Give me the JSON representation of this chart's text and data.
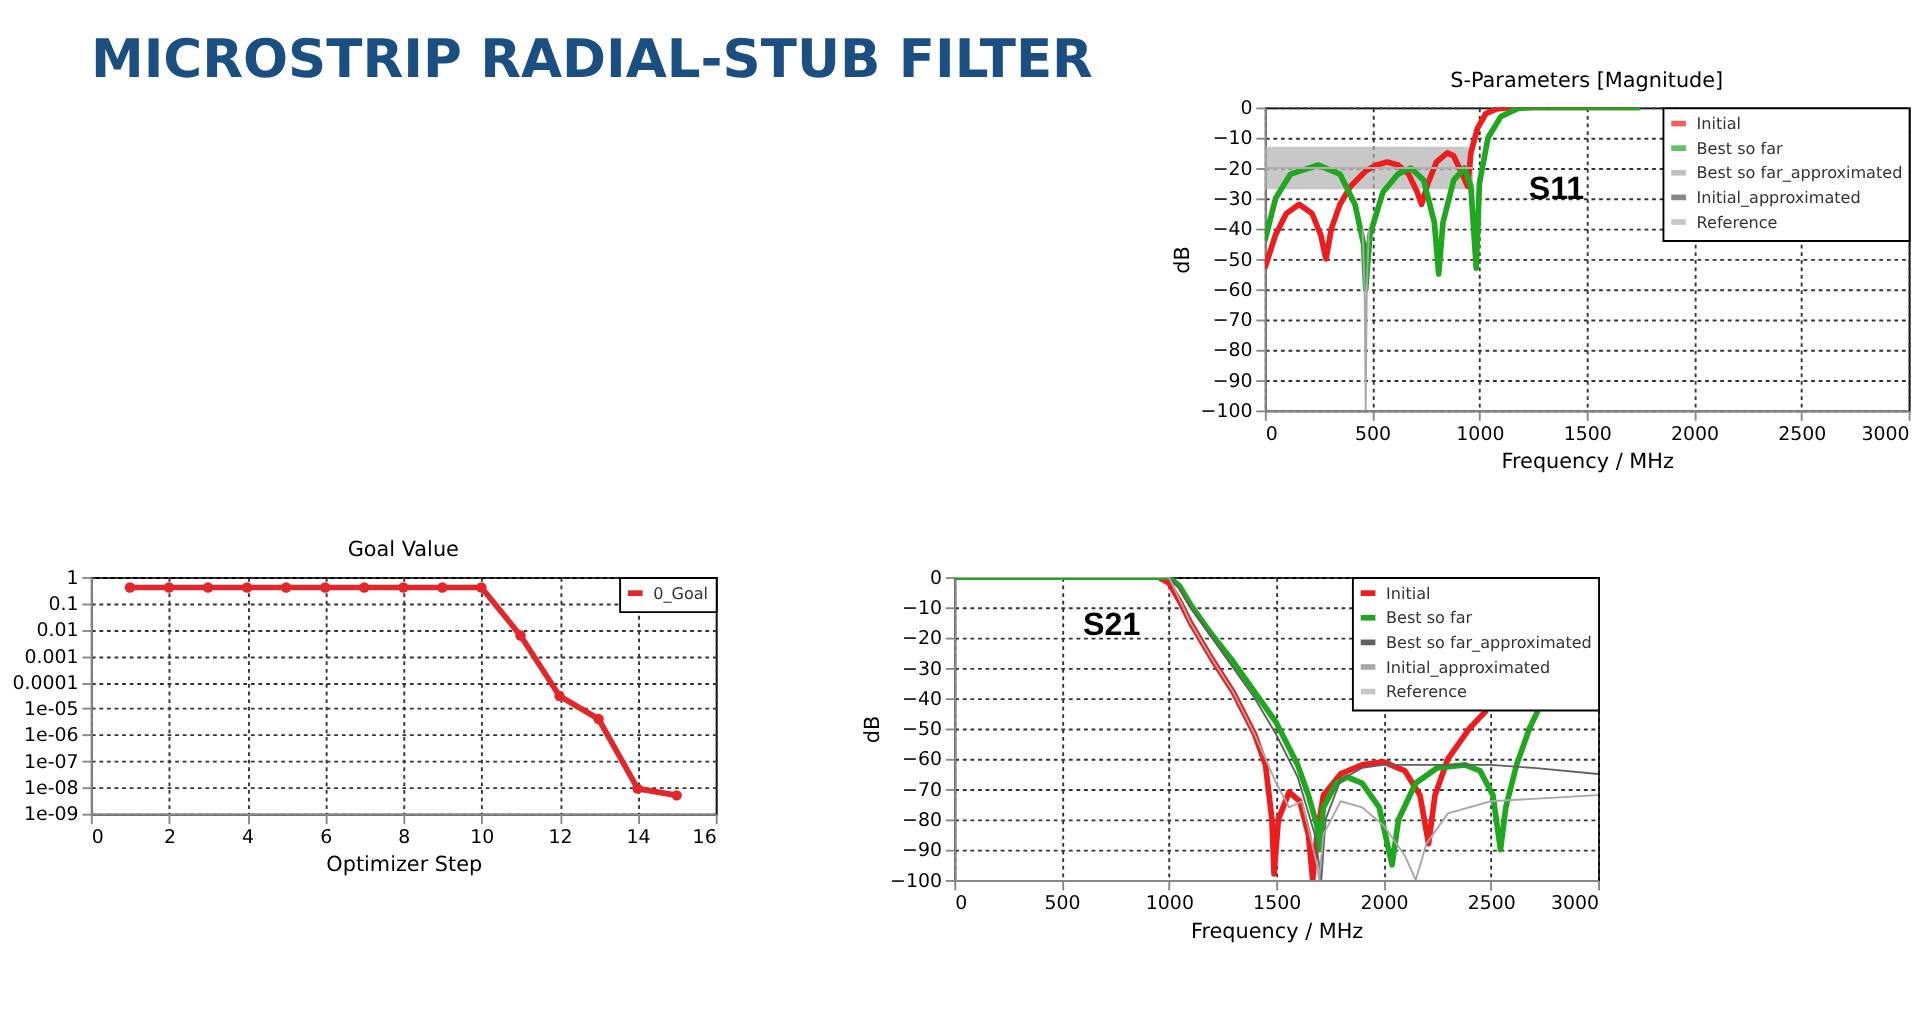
{
  "chart_data": [
    {
      "type": "other",
      "title": "MICROSTRIP RADIAL-STUB FILTER"
    },
    {
      "type": "line",
      "title": "S-Parameters [Magnitude]",
      "xlabel": "Frequency / MHz",
      "ylabel": "dB",
      "xlim": [
        0,
        3000
      ],
      "xticks": [
        0,
        500,
        1000,
        1500,
        2000,
        2500,
        3000
      ],
      "ylim": [
        -100,
        0
      ],
      "yticks": [
        -100,
        -90,
        -80,
        -70,
        -60,
        -50,
        -40,
        -30,
        -20,
        -10,
        0
      ],
      "grid": true,
      "legend": "top right",
      "annotations": [
        "S11"
      ],
      "series": [
        {
          "name": "Initial",
          "color": "#ee1c1c",
          "x": [
            0,
            50,
            100,
            160,
            220,
            260,
            285,
            310,
            350,
            400,
            470,
            520,
            570,
            620,
            670,
            710,
            730,
            760,
            800,
            850,
            880,
            920,
            945,
            960,
            990,
            1030,
            1080,
            1150,
            1750
          ],
          "values": [
            -53,
            -42,
            -35,
            -32,
            -35,
            -42,
            -50,
            -40,
            -32,
            -26,
            -21,
            -19,
            -18,
            -19,
            -22,
            -28,
            -32,
            -25,
            -18,
            -15,
            -16,
            -22,
            -26,
            -15,
            -7,
            -2,
            -0.5,
            0,
            0
          ]
        },
        {
          "name": "Best so far",
          "color": "#1fa71f",
          "x": [
            0,
            50,
            120,
            250,
            350,
            420,
            460,
            470,
            490,
            550,
            620,
            680,
            740,
            790,
            810,
            830,
            880,
            930,
            960,
            985,
            1000,
            1040,
            1100,
            1180,
            1250,
            1750
          ],
          "values": [
            -44,
            -30,
            -22,
            -19,
            -22,
            -32,
            -45,
            -60,
            -42,
            -28,
            -22,
            -20,
            -24,
            -38,
            -55,
            -38,
            -24,
            -20,
            -26,
            -53,
            -25,
            -10,
            -3,
            -0.3,
            0,
            0
          ]
        },
        {
          "name": "Best so far_approximated",
          "color": "#a8a8a8",
          "x": [
            455,
            465,
            470,
            475,
            485
          ],
          "values": [
            -40,
            -60,
            -100,
            -60,
            -40
          ]
        },
        {
          "name": "Initial_approximated",
          "color": "#555555"
        },
        {
          "name": "Reference",
          "color": "#b0b0b0",
          "x": [
            0,
            970
          ],
          "values": [
            -20,
            -20
          ],
          "lower": [
            -27,
            -27
          ],
          "upper": [
            -13,
            -13
          ]
        }
      ]
    },
    {
      "type": "line",
      "title": "Goal Value",
      "xlabel": "Optimizer Step",
      "xlim": [
        0,
        16
      ],
      "xticks": [
        0,
        2,
        4,
        6,
        8,
        10,
        12,
        14,
        16
      ],
      "ylim": [
        1e-09,
        1
      ],
      "log": true,
      "yticks": [
        {
          "value": 1e-09,
          "label": "1e-09"
        },
        {
          "value": 1e-08,
          "label": "1e-08"
        },
        {
          "value": 1e-07,
          "label": "1e-07"
        },
        {
          "value": 1e-06,
          "label": "1e-06"
        },
        {
          "value": 1e-05,
          "label": "1e-05"
        },
        0.0001,
        0.001,
        0.01,
        0.1,
        1
      ],
      "grid": true,
      "legend": "top right",
      "marker": "circle",
      "series": [
        {
          "name": "0_Goal",
          "color": "#e3262a",
          "x": [
            1,
            2,
            3,
            4,
            5,
            6,
            7,
            8,
            9,
            10,
            11,
            12,
            13,
            14,
            15
          ],
          "values": [
            0.4,
            0.4,
            0.4,
            0.4,
            0.4,
            0.4,
            0.4,
            0.4,
            0.4,
            0.4,
            0.006,
            3e-05,
            4e-06,
            9e-09,
            5e-09
          ]
        }
      ]
    },
    {
      "type": "line",
      "xlabel": "Frequency / MHz",
      "ylabel": "dB",
      "xlim": [
        0,
        3000
      ],
      "xticks": [
        0,
        500,
        1000,
        1500,
        2000,
        2500,
        3000
      ],
      "ylim": [
        -100,
        0
      ],
      "yticks": [
        -100,
        -90,
        -80,
        -70,
        -60,
        -50,
        -40,
        -30,
        -20,
        -10,
        0
      ],
      "grid": true,
      "legend": "top right",
      "annotations": [
        "S21"
      ],
      "series": [
        {
          "name": "Initial",
          "color": "#ee1c1c",
          "x": [
            0,
            950,
            1000,
            1050,
            1100,
            1200,
            1300,
            1400,
            1450,
            1480,
            1490,
            1510,
            1560,
            1610,
            1650,
            1670,
            1690,
            1720,
            1800,
            1900,
            2000,
            2100,
            2170,
            2210,
            2240,
            2300,
            2400,
            2480
          ],
          "values": [
            0,
            0,
            -2,
            -8,
            -15,
            -27,
            -38,
            -52,
            -62,
            -80,
            -98,
            -80,
            -71,
            -74,
            -85,
            -100,
            -85,
            -72,
            -65,
            -62,
            -61,
            -64,
            -72,
            -88,
            -72,
            -60,
            -50,
            -44
          ]
        },
        {
          "name": "Best so far",
          "color": "#1fa71f",
          "x": [
            0,
            1000,
            1050,
            1100,
            1200,
            1300,
            1400,
            1500,
            1600,
            1650,
            1690,
            1700,
            1720,
            1780,
            1830,
            1900,
            1980,
            2040,
            2070,
            2150,
            2250,
            2380,
            2450,
            2510,
            2545,
            2570,
            2620,
            2680,
            2720
          ],
          "values": [
            0,
            0,
            -3,
            -9,
            -19,
            -28,
            -38,
            -48,
            -62,
            -72,
            -82,
            -90,
            -76,
            -68,
            -66,
            -68,
            -76,
            -95,
            -80,
            -68,
            -63,
            -62,
            -64,
            -72,
            -90,
            -76,
            -62,
            -50,
            -44
          ]
        },
        {
          "name": "Best so far_approximated",
          "color": "#606060",
          "x": [
            0,
            1000,
            1050,
            1100,
            1200,
            1300,
            1400,
            1500,
            1600,
            1680,
            1710,
            1730,
            1800,
            1900,
            2000,
            2200,
            2500,
            2700,
            3000
          ],
          "values": [
            0,
            0,
            -4,
            -10,
            -20,
            -30,
            -40,
            -52,
            -66,
            -85,
            -100,
            -80,
            -67,
            -63,
            -62,
            -62,
            -62,
            -63,
            -65
          ]
        },
        {
          "name": "Initial_approximated",
          "color": "#a8a8a8",
          "x": [
            0,
            1000,
            1100,
            1200,
            1300,
            1400,
            1500,
            1560,
            1620,
            1690,
            1700,
            1720,
            1800,
            1900,
            2000,
            2100,
            2150,
            2200,
            2300,
            2500,
            3000
          ],
          "values": [
            0,
            0,
            -15,
            -27,
            -38,
            -52,
            -68,
            -76,
            -74,
            -95,
            -100,
            -85,
            -74,
            -76,
            -82,
            -92,
            -100,
            -88,
            -78,
            -74,
            -72
          ]
        },
        {
          "name": "Reference",
          "color": "#c8c8c8"
        }
      ]
    }
  ]
}
